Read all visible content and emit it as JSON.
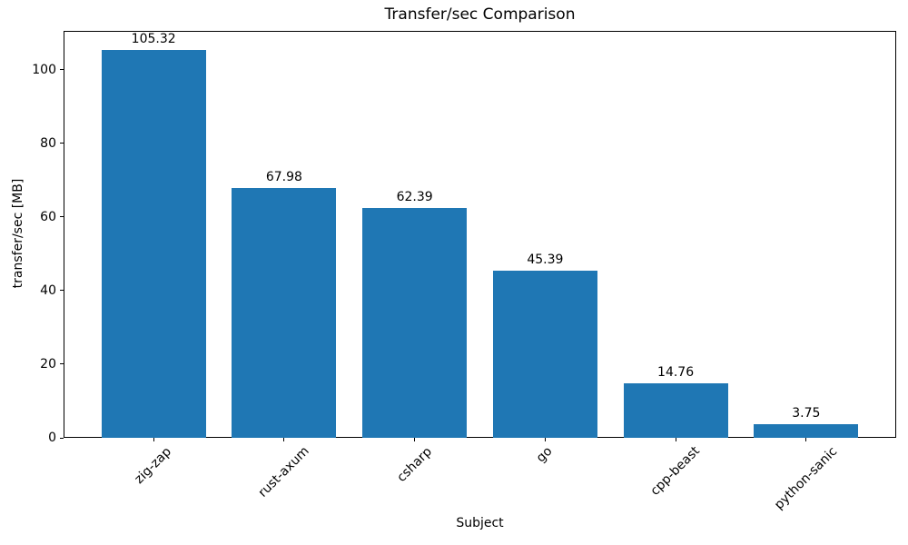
{
  "figure": {
    "background": "#ffffff"
  },
  "chart_data": {
    "type": "bar",
    "title": "Transfer/sec Comparison",
    "xlabel": "Subject",
    "ylabel": "transfer/sec [MB]",
    "categories": [
      "zig-zap",
      "rust-axum",
      "csharp",
      "go",
      "cpp-beast",
      "python-sanic"
    ],
    "values": [
      105.32,
      67.98,
      62.39,
      45.39,
      14.76,
      3.75
    ],
    "value_labels": [
      "105.32",
      "67.98",
      "62.39",
      "45.39",
      "14.76",
      "3.75"
    ],
    "yticks": [
      0,
      20,
      40,
      60,
      80,
      100
    ],
    "ytick_labels": [
      "0",
      "20",
      "40",
      "60",
      "80",
      "100"
    ],
    "ylim": [
      0,
      110.6
    ],
    "bar_color": "#1f77b4",
    "axis_color": "#000000",
    "text_color": "#000000",
    "grid": false,
    "legend": "none",
    "bar_width_fraction": 0.8,
    "x_margin_fraction": 0.05,
    "x_tick_rotation_deg": 45
  }
}
